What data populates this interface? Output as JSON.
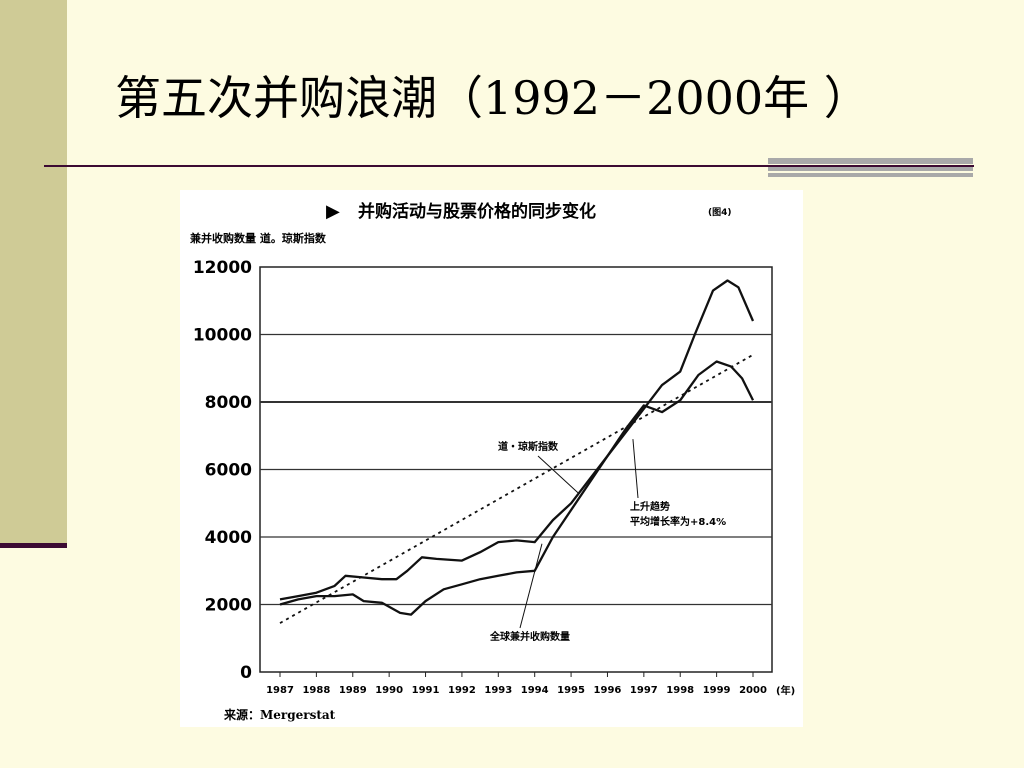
{
  "slide": {
    "title": "第五次并购浪潮（1992－2000年 ）"
  },
  "colors": {
    "background": "#fdfbe1",
    "side_bar": "#cfcb96",
    "rule": "#3c0a32",
    "accent": "#a9a9a9"
  },
  "chart_data": {
    "type": "line",
    "title": "并购活动与股票价格的同步变化",
    "title_marker": "▶",
    "figure_ref": "(图4)",
    "ylabel": "兼并收购数量 道。琼斯指数",
    "xlabel": "",
    "x_unit": "(年)",
    "source": "来源：Mergerstat",
    "ylim": [
      0,
      12000
    ],
    "yticks": [
      "0",
      "2000",
      "4000",
      "6000",
      "8000",
      "10000",
      "12000"
    ],
    "x": [
      "1987",
      "1988",
      "1989",
      "1990",
      "1991",
      "1992",
      "1993",
      "1994",
      "1995",
      "1996",
      "1997",
      "1998",
      "1999",
      "2000"
    ],
    "grid": true,
    "series": [
      {
        "name": "道・琼斯指数",
        "style": "solid",
        "points": [
          [
            1987.0,
            2150
          ],
          [
            1987.5,
            2250
          ],
          [
            1988.0,
            2350
          ],
          [
            1988.5,
            2550
          ],
          [
            1988.8,
            2850
          ],
          [
            1989.3,
            2800
          ],
          [
            1989.8,
            2750
          ],
          [
            1990.2,
            2750
          ],
          [
            1990.5,
            3000
          ],
          [
            1990.9,
            3400
          ],
          [
            1991.3,
            3350
          ],
          [
            1992.0,
            3300
          ],
          [
            1992.5,
            3550
          ],
          [
            1993.0,
            3850
          ],
          [
            1993.5,
            3900
          ],
          [
            1994.0,
            3850
          ],
          [
            1994.5,
            4500
          ],
          [
            1995.0,
            5000
          ],
          [
            1995.5,
            5700
          ],
          [
            1996.0,
            6400
          ],
          [
            1996.5,
            7100
          ],
          [
            1997.0,
            7800
          ],
          [
            1997.5,
            8500
          ],
          [
            1998.0,
            8900
          ],
          [
            1998.4,
            10000
          ],
          [
            1998.9,
            11300
          ],
          [
            1999.3,
            11600
          ],
          [
            1999.6,
            11400
          ],
          [
            2000.0,
            10400
          ]
        ]
      },
      {
        "name": "全球兼并收购数量",
        "style": "solid",
        "points": [
          [
            1987.0,
            2000
          ],
          [
            1987.5,
            2150
          ],
          [
            1988.0,
            2250
          ],
          [
            1988.5,
            2250
          ],
          [
            1989.0,
            2300
          ],
          [
            1989.3,
            2100
          ],
          [
            1989.8,
            2050
          ],
          [
            1990.3,
            1750
          ],
          [
            1990.6,
            1700
          ],
          [
            1991.0,
            2100
          ],
          [
            1991.5,
            2450
          ],
          [
            1992.0,
            2600
          ],
          [
            1992.5,
            2750
          ],
          [
            1993.0,
            2850
          ],
          [
            1993.5,
            2950
          ],
          [
            1994.0,
            3000
          ],
          [
            1994.5,
            4000
          ],
          [
            1995.0,
            4800
          ],
          [
            1995.5,
            5600
          ],
          [
            1996.0,
            6400
          ],
          [
            1996.5,
            7200
          ],
          [
            1997.0,
            7900
          ],
          [
            1997.5,
            7700
          ],
          [
            1998.0,
            8050
          ],
          [
            1998.5,
            8800
          ],
          [
            1999.0,
            9200
          ],
          [
            1999.4,
            9050
          ],
          [
            1999.7,
            8700
          ],
          [
            2000.0,
            8050
          ]
        ]
      },
      {
        "name": "上升趋势",
        "style": "dotted",
        "points": [
          [
            1987.0,
            1450
          ],
          [
            2000.0,
            9400
          ]
        ]
      }
    ],
    "annotations": [
      {
        "text": "道・琼斯指数",
        "target": [
          1995.2,
          5300
        ]
      },
      {
        "text": "上升趋势",
        "text2": "平均增长率为+8.4%",
        "target": [
          1996.7,
          6900
        ]
      },
      {
        "text": "全球兼并收购数量",
        "target": [
          1994.2,
          3800
        ]
      }
    ]
  }
}
